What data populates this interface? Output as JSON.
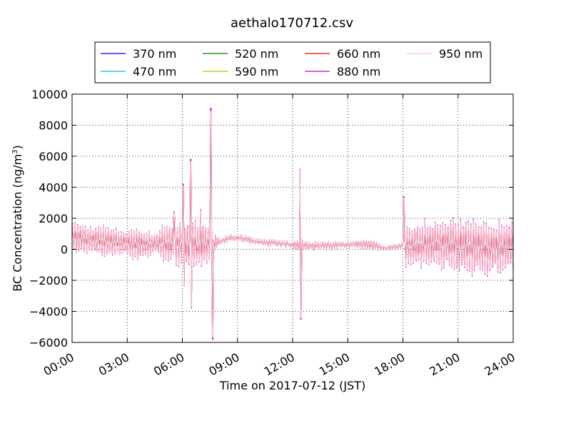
{
  "chart_data": {
    "type": "line",
    "title": "aethalo170712.csv",
    "xlabel": "Time on 2017-07-12 (JST)",
    "ylabel": "BC Concentration (ng/m",
    "ylabel_sup": "3",
    "ylabel_close": ")",
    "xlim": [
      0,
      24
    ],
    "ylim": [
      -6000,
      10000
    ],
    "x_ticks": [
      0,
      3,
      6,
      9,
      12,
      15,
      18,
      21,
      24
    ],
    "x_tick_labels": [
      "00:00",
      "03:00",
      "06:00",
      "09:00",
      "12:00",
      "15:00",
      "18:00",
      "21:00",
      "24:00"
    ],
    "y_ticks": [
      -6000,
      -4000,
      -2000,
      0,
      2000,
      4000,
      6000,
      8000,
      10000
    ],
    "y_tick_labels": [
      "−6000",
      "−4000",
      "−2000",
      "0",
      "2000",
      "4000",
      "6000",
      "8000",
      "10000"
    ],
    "grid": true,
    "legend_location": "above-plot",
    "series": [
      {
        "name": "370 nm",
        "color": "#0000ff",
        "scale": 0.55
      },
      {
        "name": "470 nm",
        "color": "#00bfbf",
        "scale": 0.65
      },
      {
        "name": "520 nm",
        "color": "#008000",
        "scale": 0.72
      },
      {
        "name": "590 nm",
        "color": "#bfbf00",
        "scale": 0.8
      },
      {
        "name": "660 nm",
        "color": "#ff0000",
        "scale": 0.88
      },
      {
        "name": "880 nm",
        "color": "#bf00bf",
        "scale": 1.0
      },
      {
        "name": "950 nm",
        "color": "#ffc0cb",
        "scale": 0.95
      }
    ],
    "baseline": [
      [
        0.0,
        800
      ],
      [
        0.5,
        700
      ],
      [
        1.0,
        600
      ],
      [
        2.0,
        500
      ],
      [
        3.0,
        400
      ],
      [
        4.0,
        300
      ],
      [
        5.0,
        400
      ],
      [
        6.0,
        300
      ],
      [
        7.0,
        200
      ],
      [
        8.0,
        500
      ],
      [
        8.5,
        700
      ],
      [
        9.0,
        750
      ],
      [
        10.0,
        500
      ],
      [
        11.0,
        400
      ],
      [
        12.0,
        300
      ],
      [
        13.0,
        200
      ],
      [
        14.0,
        250
      ],
      [
        15.0,
        300
      ],
      [
        16.0,
        350
      ],
      [
        17.0,
        100
      ],
      [
        18.0,
        200
      ],
      [
        19.0,
        300
      ],
      [
        20.0,
        400
      ],
      [
        21.0,
        300
      ],
      [
        22.0,
        200
      ],
      [
        23.0,
        150
      ],
      [
        24.0,
        200
      ]
    ],
    "oscillation_amplitude": [
      [
        0.0,
        1200
      ],
      [
        1.0,
        900
      ],
      [
        2.0,
        1100
      ],
      [
        3.0,
        700
      ],
      [
        3.5,
        1200
      ],
      [
        4.5,
        600
      ],
      [
        5.0,
        1300
      ],
      [
        5.8,
        1500
      ],
      [
        6.3,
        1800
      ],
      [
        7.0,
        1600
      ],
      [
        7.6,
        1200
      ],
      [
        8.0,
        200
      ],
      [
        11.9,
        200
      ],
      [
        12.3,
        400
      ],
      [
        13.0,
        250
      ],
      [
        15.5,
        200
      ],
      [
        16.3,
        400
      ],
      [
        17.0,
        100
      ],
      [
        18.0,
        150
      ],
      [
        18.1,
        1400
      ],
      [
        19.0,
        1500
      ],
      [
        20.0,
        1600
      ],
      [
        21.0,
        1800
      ],
      [
        22.0,
        1800
      ],
      [
        23.0,
        1700
      ],
      [
        24.0,
        1600
      ]
    ],
    "spikes": [
      {
        "x": 5.55,
        "y": 2400
      },
      {
        "x": 6.05,
        "y": 4200
      },
      {
        "x": 6.1,
        "y": -2400
      },
      {
        "x": 6.45,
        "y": 5800
      },
      {
        "x": 6.5,
        "y": -3800
      },
      {
        "x": 7.0,
        "y": 2600
      },
      {
        "x": 7.55,
        "y": 9100
      },
      {
        "x": 7.65,
        "y": -5800
      },
      {
        "x": 12.4,
        "y": 5200
      },
      {
        "x": 12.45,
        "y": -4500
      },
      {
        "x": 18.05,
        "y": 3400
      }
    ]
  }
}
